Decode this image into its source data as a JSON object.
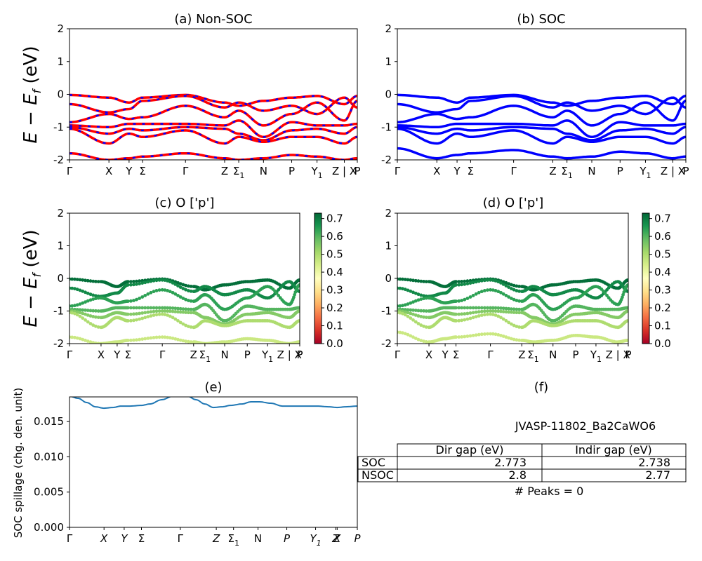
{
  "chart_data": [
    {
      "id": "a",
      "type": "line",
      "title": "(a) Non-SOC",
      "ylabel": "E - E_f (eV)",
      "ylim": [
        -2,
        2
      ],
      "yticks": [
        "2",
        "1",
        "0",
        "-1",
        "-2"
      ],
      "ytick_values": [
        2,
        1,
        0,
        -1,
        -2
      ],
      "xticks": [
        "Γ",
        "X",
        "Y",
        "Σ",
        "Γ",
        "Z",
        "Σ",
        "N",
        "P",
        "Y",
        "Z | X",
        "P"
      ],
      "xtick_subs": [
        "",
        "",
        "",
        "",
        "",
        "",
        "1",
        "",
        "",
        "1",
        "",
        ""
      ],
      "kpoints": [
        0,
        0.137,
        0.207,
        0.254,
        0.403,
        0.539,
        0.588,
        0.674,
        0.772,
        0.86,
        0.955,
        1.0
      ],
      "colors": {
        "line": "#ff0000",
        "dash": "#0000ff"
      },
      "series": [
        {
          "values": [
            -0.02,
            -0.1,
            -0.25,
            -0.1,
            -0.02,
            -0.25,
            -0.35,
            -0.2,
            -0.1,
            -0.05,
            -0.3,
            -0.05
          ]
        },
        {
          "values": [
            -0.3,
            -0.55,
            -0.45,
            -0.2,
            -0.05,
            -0.4,
            -0.25,
            -0.5,
            -0.35,
            -0.6,
            -0.1,
            -0.4
          ]
        },
        {
          "values": [
            -0.85,
            -0.6,
            -0.75,
            -0.7,
            -0.35,
            -0.7,
            -0.5,
            -0.95,
            -0.6,
            -0.25,
            -0.8,
            -0.2
          ]
        },
        {
          "values": [
            -0.95,
            -1.0,
            -0.9,
            -0.9,
            -0.9,
            -0.95,
            -0.8,
            -1.3,
            -0.85,
            -0.95,
            -0.95,
            -0.9
          ]
        },
        {
          "values": [
            -1.0,
            -1.2,
            -1.05,
            -1.1,
            -1.0,
            -1.05,
            -1.2,
            -1.4,
            -1.1,
            -1.05,
            -1.2,
            -1.0
          ]
        },
        {
          "values": [
            -1.05,
            -1.5,
            -1.2,
            -1.3,
            -1.1,
            -1.5,
            -1.3,
            -1.45,
            -1.3,
            -1.3,
            -1.5,
            -1.3
          ]
        },
        {
          "values": [
            -1.8,
            -2.0,
            -1.95,
            -1.9,
            -1.8,
            -1.95,
            -2.0,
            -1.95,
            -1.85,
            -1.9,
            -2.0,
            -1.95
          ]
        }
      ]
    },
    {
      "id": "b",
      "type": "line",
      "title": "(b) SOC",
      "ylim": [
        -2,
        2
      ],
      "yticks": [
        "2",
        "1",
        "0",
        "-1",
        "-2"
      ],
      "ytick_values": [
        2,
        1,
        0,
        -1,
        -2
      ],
      "xticks": [
        "Γ",
        "X",
        "Y",
        "Σ",
        "Γ",
        "Z",
        "Σ",
        "N",
        "P",
        "Y",
        "Z | X",
        "P"
      ],
      "xtick_subs": [
        "",
        "",
        "",
        "",
        "",
        "",
        "1",
        "",
        "",
        "1",
        "",
        ""
      ],
      "kpoints": [
        0,
        0.137,
        0.207,
        0.254,
        0.403,
        0.539,
        0.588,
        0.674,
        0.772,
        0.86,
        0.955,
        1.0
      ],
      "colors": {
        "line": "#0000ff"
      },
      "series": [
        {
          "values": [
            -0.02,
            -0.1,
            -0.25,
            -0.1,
            -0.02,
            -0.25,
            -0.35,
            -0.2,
            -0.1,
            -0.05,
            -0.3,
            -0.05
          ]
        },
        {
          "values": [
            -0.3,
            -0.55,
            -0.45,
            -0.2,
            -0.05,
            -0.4,
            -0.25,
            -0.5,
            -0.35,
            -0.6,
            -0.1,
            -0.4
          ]
        },
        {
          "values": [
            -0.85,
            -0.6,
            -0.75,
            -0.7,
            -0.35,
            -0.7,
            -0.5,
            -0.95,
            -0.6,
            -0.25,
            -0.8,
            -0.2
          ]
        },
        {
          "values": [
            -0.95,
            -1.0,
            -0.9,
            -0.9,
            -0.9,
            -0.95,
            -0.8,
            -1.3,
            -0.85,
            -0.95,
            -0.95,
            -0.9
          ]
        },
        {
          "values": [
            -1.0,
            -1.2,
            -1.05,
            -1.1,
            -1.0,
            -1.05,
            -1.2,
            -1.4,
            -1.1,
            -1.05,
            -1.2,
            -1.0
          ]
        },
        {
          "values": [
            -1.05,
            -1.5,
            -1.2,
            -1.3,
            -1.1,
            -1.5,
            -1.3,
            -1.45,
            -1.3,
            -1.3,
            -1.5,
            -1.3
          ]
        },
        {
          "values": [
            -1.65,
            -1.95,
            -1.85,
            -1.8,
            -1.7,
            -1.9,
            -1.95,
            -1.9,
            -1.75,
            -1.8,
            -1.95,
            -1.9
          ]
        }
      ]
    },
    {
      "id": "c",
      "type": "scatter",
      "title": "(c)  O ['p']",
      "ylabel": "E - E_f (eV)",
      "ylim": [
        -2,
        2
      ],
      "yticks": [
        "2",
        "1",
        "0",
        "-1",
        "-2"
      ],
      "ytick_values": [
        2,
        1,
        0,
        -1,
        -2
      ],
      "xticks": [
        "Γ",
        "X",
        "Y",
        "Σ",
        "Γ",
        "Z",
        "Σ",
        "N",
        "P",
        "Y",
        "Z | X",
        "P"
      ],
      "xtick_subs": [
        "",
        "",
        "",
        "",
        "",
        "",
        "1",
        "",
        "",
        "1",
        "",
        ""
      ],
      "kpoints": [
        0,
        0.137,
        0.207,
        0.254,
        0.403,
        0.539,
        0.588,
        0.674,
        0.772,
        0.86,
        0.955,
        1.0
      ],
      "colorbar": {
        "min": 0.0,
        "max": 0.73,
        "ticks": [
          "0.0",
          "0.1",
          "0.2",
          "0.3",
          "0.4",
          "0.5",
          "0.6",
          "0.7"
        ],
        "tick_values": [
          0.0,
          0.1,
          0.2,
          0.3,
          0.4,
          0.5,
          0.6,
          0.7
        ]
      },
      "series": [
        {
          "weight": 0.72,
          "values": [
            -0.02,
            -0.1,
            -0.25,
            -0.1,
            -0.02,
            -0.25,
            -0.35,
            -0.2,
            -0.1,
            -0.05,
            -0.3,
            -0.05
          ]
        },
        {
          "weight": 0.68,
          "values": [
            -0.3,
            -0.55,
            -0.45,
            -0.2,
            -0.05,
            -0.4,
            -0.25,
            -0.5,
            -0.35,
            -0.6,
            -0.1,
            -0.4
          ]
        },
        {
          "weight": 0.64,
          "values": [
            -0.85,
            -0.6,
            -0.75,
            -0.7,
            -0.35,
            -0.7,
            -0.5,
            -0.95,
            -0.6,
            -0.25,
            -0.8,
            -0.2
          ]
        },
        {
          "weight": 0.6,
          "values": [
            -0.95,
            -1.0,
            -0.9,
            -0.9,
            -0.9,
            -0.95,
            -0.8,
            -1.3,
            -0.85,
            -0.95,
            -0.95,
            -0.9
          ]
        },
        {
          "weight": 0.55,
          "values": [
            -1.0,
            -1.2,
            -1.05,
            -1.1,
            -1.0,
            -1.05,
            -1.2,
            -1.4,
            -1.1,
            -1.05,
            -1.2,
            -1.0
          ]
        },
        {
          "weight": 0.5,
          "values": [
            -1.05,
            -1.5,
            -1.2,
            -1.3,
            -1.1,
            -1.5,
            -1.3,
            -1.45,
            -1.3,
            -1.3,
            -1.5,
            -1.3
          ]
        },
        {
          "weight": 0.46,
          "values": [
            -1.8,
            -2.0,
            -1.95,
            -1.9,
            -1.8,
            -1.95,
            -2.0,
            -1.95,
            -1.85,
            -1.9,
            -2.0,
            -1.95
          ]
        }
      ]
    },
    {
      "id": "d",
      "type": "scatter",
      "title": "(d) O ['p']",
      "ylim": [
        -2,
        2
      ],
      "yticks": [
        "2",
        "1",
        "0",
        "-1",
        "-2"
      ],
      "ytick_values": [
        2,
        1,
        0,
        -1,
        -2
      ],
      "xticks": [
        "Γ",
        "X",
        "Y",
        "Σ",
        "Γ",
        "Z",
        "Σ",
        "N",
        "P",
        "Y",
        "Z | X",
        "P"
      ],
      "xtick_subs": [
        "",
        "",
        "",
        "",
        "",
        "",
        "1",
        "",
        "",
        "1",
        "",
        ""
      ],
      "kpoints": [
        0,
        0.137,
        0.207,
        0.254,
        0.403,
        0.539,
        0.588,
        0.674,
        0.772,
        0.86,
        0.955,
        1.0
      ],
      "colorbar": {
        "min": 0.0,
        "max": 0.73,
        "ticks": [
          "0.0",
          "0.1",
          "0.2",
          "0.3",
          "0.4",
          "0.5",
          "0.6",
          "0.7"
        ],
        "tick_values": [
          0.0,
          0.1,
          0.2,
          0.3,
          0.4,
          0.5,
          0.6,
          0.7
        ]
      },
      "series": [
        {
          "weight": 0.72,
          "values": [
            -0.02,
            -0.1,
            -0.25,
            -0.1,
            -0.02,
            -0.25,
            -0.35,
            -0.2,
            -0.1,
            -0.05,
            -0.3,
            -0.05
          ]
        },
        {
          "weight": 0.68,
          "values": [
            -0.3,
            -0.55,
            -0.45,
            -0.2,
            -0.05,
            -0.4,
            -0.25,
            -0.5,
            -0.35,
            -0.6,
            -0.1,
            -0.4
          ]
        },
        {
          "weight": 0.64,
          "values": [
            -0.85,
            -0.6,
            -0.75,
            -0.7,
            -0.35,
            -0.7,
            -0.5,
            -0.95,
            -0.6,
            -0.25,
            -0.8,
            -0.2
          ]
        },
        {
          "weight": 0.6,
          "values": [
            -0.95,
            -1.0,
            -0.9,
            -0.9,
            -0.9,
            -0.95,
            -0.8,
            -1.3,
            -0.85,
            -0.95,
            -0.95,
            -0.9
          ]
        },
        {
          "weight": 0.55,
          "values": [
            -1.0,
            -1.2,
            -1.05,
            -1.1,
            -1.0,
            -1.05,
            -1.2,
            -1.4,
            -1.1,
            -1.05,
            -1.2,
            -1.0
          ]
        },
        {
          "weight": 0.5,
          "values": [
            -1.05,
            -1.5,
            -1.2,
            -1.3,
            -1.1,
            -1.5,
            -1.3,
            -1.45,
            -1.3,
            -1.3,
            -1.5,
            -1.3
          ]
        },
        {
          "weight": 0.46,
          "values": [
            -1.65,
            -1.95,
            -1.85,
            -1.8,
            -1.7,
            -1.9,
            -1.95,
            -1.9,
            -1.75,
            -1.8,
            -1.95,
            -1.9
          ]
        }
      ]
    },
    {
      "id": "e",
      "type": "line",
      "title": "(e)",
      "ylabel": "SOC spillage (chg. den. unit)",
      "ylim": [
        0,
        0.0185
      ],
      "yticks": [
        "0.015",
        "0.010",
        "0.005",
        "0.000"
      ],
      "ytick_values": [
        0.015,
        0.01,
        0.005,
        0.0
      ],
      "xticks": [
        "Γ",
        "X",
        "Y",
        "Σ",
        "Γ",
        "Z",
        "Σ",
        "N",
        "P",
        "Y",
        "Z",
        "X",
        "P"
      ],
      "xtick_subs": [
        "",
        "",
        "",
        "",
        "",
        "",
        "1",
        "",
        "",
        "1",
        "",
        "",
        ""
      ],
      "kpoints": [
        0,
        0.12,
        0.19,
        0.25,
        0.385,
        0.51,
        0.57,
        0.655,
        0.755,
        0.855,
        0.925,
        0.93,
        1.0
      ],
      "colors": {
        "line": "#1f77b4"
      },
      "x": [
        0,
        0.03,
        0.06,
        0.09,
        0.12,
        0.15,
        0.18,
        0.21,
        0.25,
        0.28,
        0.32,
        0.36,
        0.385,
        0.41,
        0.44,
        0.47,
        0.5,
        0.53,
        0.56,
        0.6,
        0.63,
        0.66,
        0.7,
        0.74,
        0.78,
        0.82,
        0.86,
        0.9,
        0.93,
        0.96,
        1.0
      ],
      "values": [
        0.0186,
        0.0183,
        0.0177,
        0.0171,
        0.0169,
        0.017,
        0.0172,
        0.0172,
        0.0173,
        0.0175,
        0.0181,
        0.0186,
        0.0187,
        0.0186,
        0.0181,
        0.0175,
        0.017,
        0.0171,
        0.0173,
        0.0175,
        0.0178,
        0.0178,
        0.0176,
        0.0172,
        0.0172,
        0.0172,
        0.0172,
        0.0171,
        0.017,
        0.0171,
        0.0172
      ]
    }
  ],
  "panel_f": {
    "title": "(f)",
    "material": "JVASP-11802_Ba2CaWO6",
    "table": {
      "headers": [
        "Dir gap (eV)",
        "Indir gap (eV)"
      ],
      "rows": [
        {
          "label": "SOC",
          "dir": "2.773",
          "indir": "2.738"
        },
        {
          "label": "NSOC",
          "dir": "2.8",
          "indir": "2.77"
        }
      ]
    },
    "peaks": "# Peaks = 0"
  }
}
